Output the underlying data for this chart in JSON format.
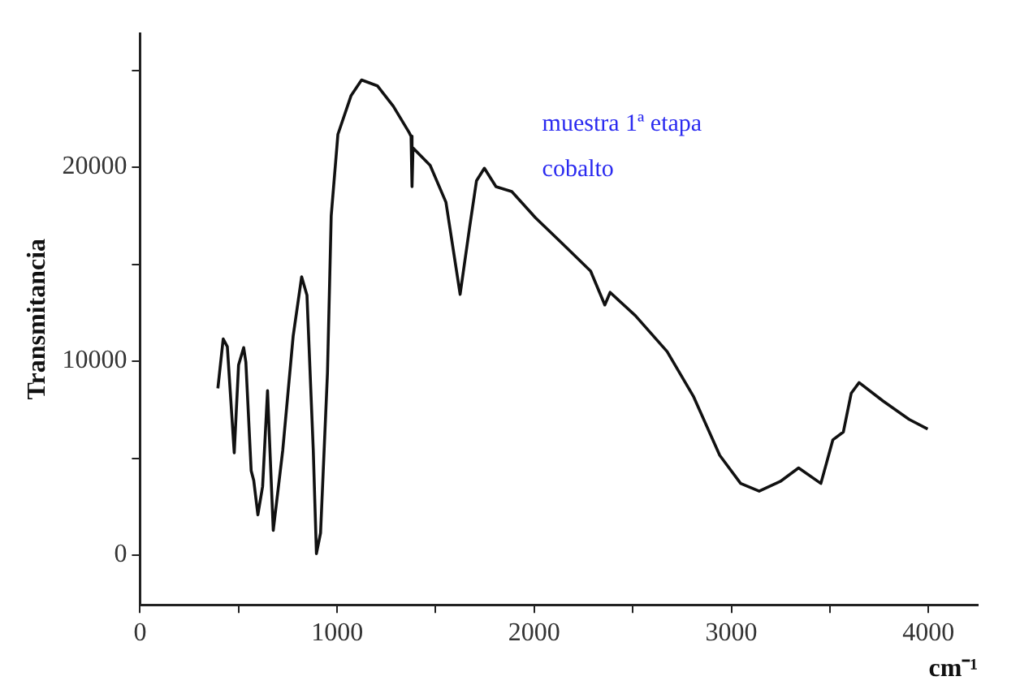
{
  "chart_data": {
    "type": "line",
    "xlabel": "cm⁻¹",
    "ylabel": "Transmitancia",
    "annotations": [
      "muestra 1ª etapa",
      "cobalto"
    ],
    "xlim": [
      0,
      4250
    ],
    "ylim": [
      -2560,
      26900
    ],
    "xticks": [
      0,
      {
        "value": 500,
        "label": null
      },
      1000,
      {
        "value": 1500,
        "label": null
      },
      2000,
      {
        "value": 2500,
        "label": null
      },
      3000,
      {
        "value": 3500,
        "label": null
      },
      4000
    ],
    "yticks": [
      0,
      {
        "value": 5000,
        "label": null
      },
      10000,
      {
        "value": 15000,
        "label": null
      },
      20000,
      {
        "value": 25000,
        "label": null
      }
    ],
    "grid": false,
    "legend": false,
    "marker": "none",
    "line_style": "solid",
    "series": [
      {
        "color": "#111111",
        "x": [
          395,
          422,
          443,
          478,
          500,
          526,
          537,
          564,
          577,
          598,
          622,
          647,
          657,
          676,
          724,
          777,
          820,
          847,
          879,
          895,
          916,
          951,
          970,
          1004,
          1071,
          1124,
          1204,
          1285,
          1365,
          1375,
          1380,
          1385,
          1472,
          1552,
          1624,
          1672,
          1707,
          1747,
          1806,
          1886,
          2006,
          2139,
          2286,
          2358,
          2385,
          2513,
          2674,
          2807,
          2941,
          3047,
          3141,
          3248,
          3341,
          3454,
          3515,
          3568,
          3608,
          3648,
          3769,
          3902,
          3996
        ],
        "values": [
          8600,
          11150,
          10750,
          5280,
          9800,
          10700,
          9950,
          4350,
          3850,
          2080,
          3550,
          8480,
          5950,
          1280,
          5400,
          11300,
          14350,
          13400,
          5400,
          80,
          1150,
          9400,
          17500,
          21700,
          23700,
          24500,
          24200,
          23150,
          21800,
          21600,
          19000,
          21000,
          20100,
          18200,
          13450,
          16900,
          19300,
          19950,
          19000,
          18750,
          17400,
          16100,
          14650,
          12900,
          13550,
          12350,
          10500,
          8200,
          5150,
          3700,
          3300,
          3800,
          4500,
          3700,
          5950,
          6350,
          8350,
          8900,
          7950,
          7000,
          6500
        ]
      }
    ]
  }
}
